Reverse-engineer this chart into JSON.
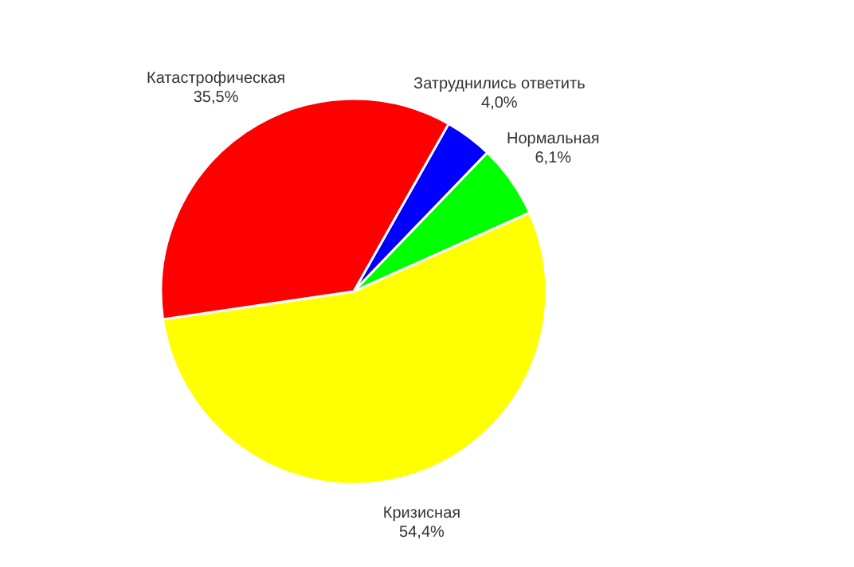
{
  "chart_data": {
    "type": "pie",
    "categories": [
      "Затруднились ответить",
      "Нормальная",
      "Кризисная",
      "Катастрофическая"
    ],
    "values": [
      4.0,
      6.1,
      54.4,
      35.5
    ],
    "value_labels": [
      "4,0%",
      "6,1%",
      "54,4%",
      "35,5%"
    ],
    "colors": [
      "#0000ff",
      "#00ff00",
      "#ffff00",
      "#ff0000"
    ],
    "legend": false
  }
}
